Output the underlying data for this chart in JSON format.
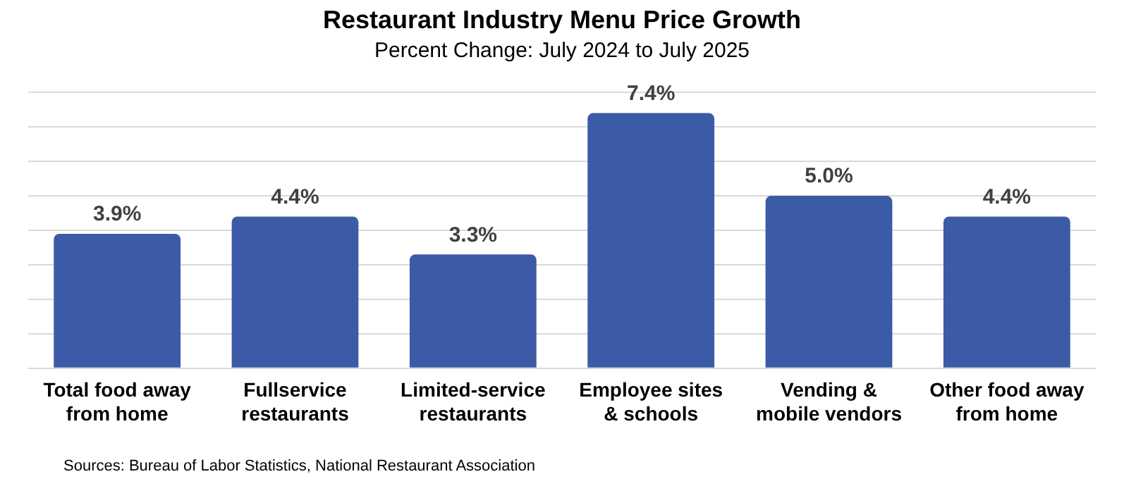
{
  "chart_data": {
    "type": "bar",
    "title": "Restaurant Industry Menu Price Growth",
    "subtitle": "Percent Change: July 2024 to July 2025",
    "categories": [
      "Total food away from home",
      "Fullservice restaurants",
      "Limited-service restaurants",
      "Employee sites & schools",
      "Vending & mobile vendors",
      "Other food away from home"
    ],
    "values": [
      3.9,
      4.4,
      3.3,
      7.4,
      5.0,
      4.4
    ],
    "value_labels": [
      "3.9%",
      "4.4%",
      "3.3%",
      "7.4%",
      "5.0%",
      "4.4%"
    ],
    "color": "#3b5ba6",
    "ylim": [
      0,
      8
    ],
    "yticks": [
      {
        "value": 0,
        "label": null
      },
      {
        "value": 1,
        "label": null
      },
      {
        "value": 2,
        "label": null
      },
      {
        "value": 3,
        "label": null
      },
      {
        "value": 4,
        "label": null
      },
      {
        "value": 5,
        "label": null
      },
      {
        "value": 6,
        "label": null
      },
      {
        "value": 7,
        "label": null
      },
      {
        "value": 8,
        "label": null
      }
    ],
    "grid": "y",
    "tick_labels": "x",
    "legend": false,
    "annotations": [
      "Sources: Bureau of Labor Statistics, National Restaurant Association"
    ]
  }
}
